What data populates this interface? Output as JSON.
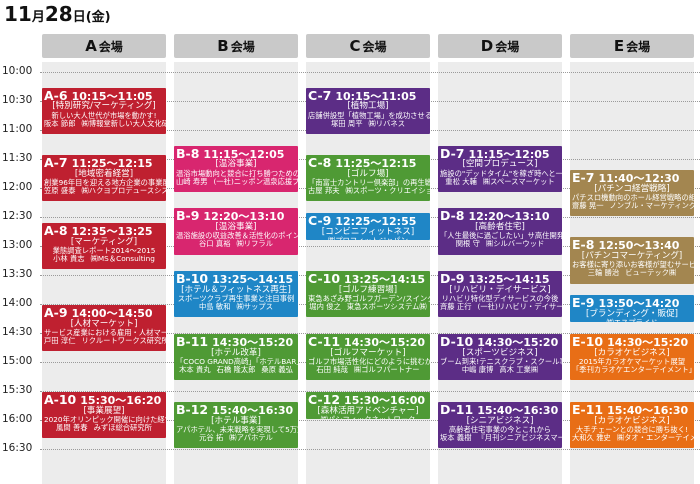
{
  "header": {
    "month": "11",
    "month_unit": "月",
    "day": "28",
    "day_unit": "日",
    "weekday": "(金)"
  },
  "venues": [
    {
      "label": "A",
      "suffix": "会場"
    },
    {
      "label": "B",
      "suffix": "会場"
    },
    {
      "label": "C",
      "suffix": "会場"
    },
    {
      "label": "D",
      "suffix": "会場"
    },
    {
      "label": "E",
      "suffix": "会場"
    }
  ],
  "times": [
    "10:00",
    "10:30",
    "11:00",
    "11:30",
    "12:00",
    "12:30",
    "13:00",
    "13:30",
    "14:00",
    "14:30",
    "15:00",
    "15:30",
    "16:00",
    "16:30"
  ],
  "colors": {
    "red": "#bf2030",
    "green": "#4f9a35",
    "purple": "#5c2d86",
    "khaki": "#a38650",
    "blue": "#1f86c6",
    "orange": "#e86e16",
    "pink": "#d8266f"
  },
  "events": [
    {
      "venue": 0,
      "start": "10:15",
      "end": "11:05",
      "color": "red",
      "code": "A-6",
      "time": "10:15～11:05",
      "category": "[特別研究/マーケティング]",
      "title": "新しい大人世代が市場を動かす!",
      "speakers": [
        "阪本 節郎",
        "㈱博報堂新しい大人文化研究所"
      ]
    },
    {
      "venue": 0,
      "start": "11:25",
      "end": "12:15",
      "color": "red",
      "code": "A-7",
      "time": "11:25～12:15",
      "category": "[地域密着経営]",
      "title": "創業96年目を迎える地方企業の事業展開",
      "speakers": [
        "笠原 盛泰",
        "㈱ハクヨプロデュースシステム"
      ]
    },
    {
      "venue": 0,
      "start": "12:35",
      "end": "13:25",
      "color": "red",
      "code": "A-8",
      "time": "12:35～13:25",
      "category": "[マーケティング]",
      "title": "業態調査レポート2014～2015",
      "speakers": [
        "小林 貴志",
        "㈱MS＆Consulting"
      ]
    },
    {
      "venue": 0,
      "start": "14:00",
      "end": "14:50",
      "color": "red",
      "code": "A-9",
      "time": "14:00～14:50",
      "category": "[人材マーケット]",
      "title": "サービス産業における雇用・人材マーケットの展望",
      "speakers": [
        "戸田 淳仁",
        "リクルートワークス研究所"
      ]
    },
    {
      "venue": 0,
      "start": "15:30",
      "end": "16:20",
      "color": "red",
      "code": "A-10",
      "time": "15:30～16:20",
      "category": "[事業展望]",
      "title": "2020年オリンピック開催に向けた経営計画とビジネスチャンス",
      "speakers": [
        "風間 善春",
        "みずほ総合研究所"
      ]
    },
    {
      "venue": 1,
      "start": "11:15",
      "end": "12:05",
      "color": "pink",
      "code": "B-8",
      "time": "11:15～12:05",
      "category": "[温浴事業]",
      "title": "温浴市場動向と競合に打ち勝つためのポイント",
      "speakers": [
        "山崎 寿男",
        "(一社)ニッポン温泉応援プロジェクト"
      ]
    },
    {
      "venue": 1,
      "start": "12:20",
      "end": "13:10",
      "color": "pink",
      "code": "B-9",
      "time": "12:20～13:10",
      "category": "[温浴事業]",
      "title": "温浴施設の収益改善＆活性化のポイント",
      "speakers": [
        "谷口 真裕",
        "㈱リフラル"
      ]
    },
    {
      "venue": 1,
      "start": "13:25",
      "end": "14:15",
      "color": "blue",
      "code": "B-10",
      "time": "13:25～14:15",
      "category": "[ホテル＆フィットネス再生]",
      "title": "スポーツクラブ再生事業と注目事例",
      "speakers": [
        "中島 敏和",
        "㈱サップス"
      ]
    },
    {
      "venue": 1,
      "start": "14:30",
      "end": "15:20",
      "color": "green",
      "code": "B-11",
      "time": "14:30～15:20",
      "category": "[ホテル改革]",
      "title": "「COCO GRAND高崎」「ホテルBAR」",
      "speakers": [
        "木本 貴丸",
        "石橋 隆太郎",
        "桑原 義弘"
      ]
    },
    {
      "venue": 1,
      "start": "15:40",
      "end": "16:30",
      "color": "green",
      "code": "B-12",
      "time": "15:40～16:30",
      "category": "[ホテル事業]",
      "title": "アパホテル、未来戦略を実現して5万室達成へ",
      "speakers": [
        "元谷 拓",
        "㈱アパホテル"
      ]
    },
    {
      "venue": 2,
      "start": "10:15",
      "end": "11:05",
      "color": "purple",
      "code": "C-7",
      "time": "10:15～11:05",
      "category": "[植物工場]",
      "title": "店舗併設型「植物工場」を成功させるには",
      "speakers": [
        "塚田 周平",
        "㈱リバネス"
      ]
    },
    {
      "venue": 2,
      "start": "11:25",
      "end": "12:15",
      "color": "green",
      "code": "C-8",
      "time": "11:25～12:15",
      "category": "[ゴルフ場]",
      "title": "「南富士カントリー倶楽部」の再生戦略",
      "speakers": [
        "古屋 邦夫",
        "㈱スポーツ・クリエイション"
      ]
    },
    {
      "venue": 2,
      "start": "12:25",
      "end": "12:55",
      "color": "blue",
      "code": "C-9",
      "time": "12:25～12:55",
      "category": "[コンビニフィットネス]",
      "title": "",
      "speakers": [
        "",
        "㈱プロフィットジャパン"
      ]
    },
    {
      "venue": 2,
      "start": "13:25",
      "end": "14:15",
      "color": "green",
      "code": "C-10",
      "time": "13:25～14:15",
      "category": "[ゴルフ練習場]",
      "title": "東急あざみ野ゴルフガーデン/スイング練習場",
      "speakers": [
        "堀内 俊之",
        "東急スポーツシステム㈱"
      ]
    },
    {
      "venue": 2,
      "start": "14:30",
      "end": "15:20",
      "color": "green",
      "code": "C-11",
      "time": "14:30～15:20",
      "category": "[ゴルフマーケット]",
      "title": "ゴルフ市場活性化にどのように挑むか",
      "speakers": [
        "石田 純哉",
        "㈱ゴルフパートナー"
      ]
    },
    {
      "venue": 2,
      "start": "15:30",
      "end": "16:00",
      "color": "green",
      "code": "C-12",
      "time": "15:30～16:00",
      "category": "[森林活用アドベンチャー]",
      "title": "",
      "speakers": [
        "",
        "㈱パシフィックネットワーク"
      ]
    },
    {
      "venue": 3,
      "start": "11:15",
      "end": "12:05",
      "color": "purple",
      "code": "D-7",
      "time": "11:15～12:05",
      "category": "[空間プロデュース]",
      "title": "施設の\"デッドタイム\"を稼ぎ時へと一変",
      "speakers": [
        "重松 大輔",
        "㈱スペースマーケット"
      ]
    },
    {
      "venue": 3,
      "start": "12:20",
      "end": "13:10",
      "color": "purple",
      "code": "D-8",
      "time": "12:20～13:10",
      "category": "[高齢者住宅]",
      "title": "「人生最後に過ごしたい」サ高住開発・運営手法研究",
      "speakers": [
        "関根 守",
        "㈱シルバーウッド"
      ]
    },
    {
      "venue": 3,
      "start": "13:25",
      "end": "14:15",
      "color": "purple",
      "code": "D-9",
      "time": "13:25～14:15",
      "category": "[リハビリ・デイサービス]",
      "title": "リハビリ特化型デイサービスの今後",
      "speakers": [
        "斉藤 正行",
        "(一社)リハビリ・デイサービス協会"
      ]
    },
    {
      "venue": 3,
      "start": "14:30",
      "end": "15:20",
      "color": "purple",
      "code": "D-10",
      "time": "14:30～15:20",
      "category": "[スポーツビジネス]",
      "title": "ブーム到来!テニスクラブ・スクール事業",
      "speakers": [
        "中嶋 康博",
        "高木 工業㈱"
      ]
    },
    {
      "venue": 3,
      "start": "15:40",
      "end": "16:30",
      "color": "purple",
      "code": "D-11",
      "time": "15:40～16:30",
      "category": "[シニアビジネス]",
      "title": "高齢者住宅事業の今とこれから",
      "speakers": [
        "坂本 義樹",
        "『月刊シニアビジネスマーケット』"
      ]
    },
    {
      "venue": 4,
      "start": "11:40",
      "end": "12:30",
      "color": "khaki",
      "code": "E-7",
      "time": "11:40～12:30",
      "category": "[パチンコ経営戦略]",
      "title": "パチスロ機動向のホール経営戦略の組み立て方",
      "speakers": [
        "齋藤 晃一",
        "ノンブル・マーケティング㈱"
      ]
    },
    {
      "venue": 4,
      "start": "12:50",
      "end": "13:40",
      "color": "khaki",
      "code": "E-8",
      "time": "12:50～13:40",
      "category": "[パチンコマーケティング]",
      "title": "お客様に寄り添いお客様が望むサービスとは",
      "speakers": [
        "三輪 勝治",
        "ビューテック㈱"
      ]
    },
    {
      "venue": 4,
      "start": "13:50",
      "end": "14:20",
      "color": "blue",
      "code": "E-9",
      "time": "13:50～14:20",
      "category": "[ブランディング・販促]",
      "title": "",
      "speakers": [
        "",
        "㈱エスプライド"
      ]
    },
    {
      "venue": 4,
      "start": "14:30",
      "end": "15:20",
      "color": "orange",
      "code": "E-10",
      "time": "14:30～15:20",
      "category": "[カラオケビジネス]",
      "title": "2015年カラオケマーケット展望",
      "speakers": [
        "",
        "「季刊カラオケエンターテイメント」"
      ]
    },
    {
      "venue": 4,
      "start": "15:40",
      "end": "16:30",
      "color": "orange",
      "code": "E-11",
      "time": "15:40～16:30",
      "category": "[カラオケビジネス]",
      "title": "大手チェーンとの競合に勝ち抜く!",
      "speakers": [
        "大和久 雅史",
        "㈱タオ・エンターテイメント"
      ]
    }
  ]
}
